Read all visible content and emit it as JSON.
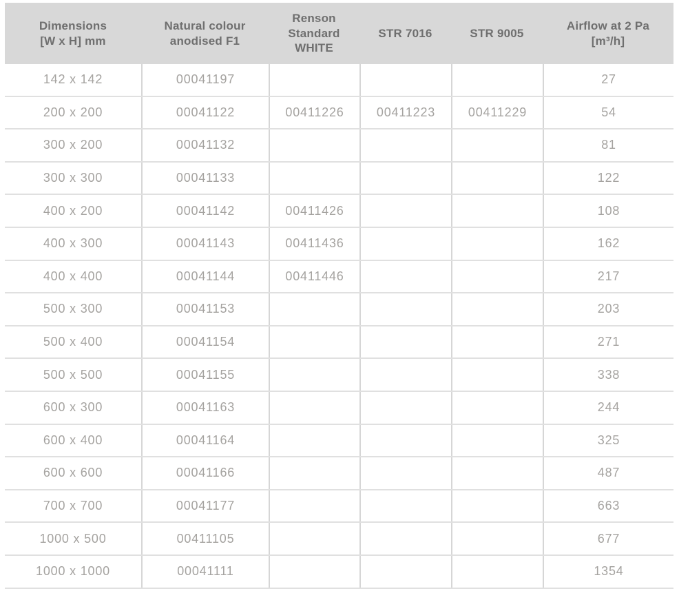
{
  "table": {
    "columns": [
      {
        "key": "dimensions",
        "label": "Dimensions\n[W x H] mm"
      },
      {
        "key": "natural-colour-anodised-f1",
        "label": "Natural colour\nanodised F1"
      },
      {
        "key": "renson-standard-white",
        "label": "Renson\nStandard\nWHITE"
      },
      {
        "key": "str-7016",
        "label": "STR 7016"
      },
      {
        "key": "str-9005",
        "label": "STR 9005"
      },
      {
        "key": "airflow-at-2pa",
        "label": "Airflow at 2 Pa\n[m³/h]"
      }
    ],
    "rows": [
      [
        "142 x 142",
        "00041197",
        "",
        "",
        "",
        "27"
      ],
      [
        "200 x 200",
        "00041122",
        "00411226",
        "00411223",
        "00411229",
        "54"
      ],
      [
        "300 x 200",
        "00041132",
        "",
        "",
        "",
        "81"
      ],
      [
        "300 x 300",
        "00041133",
        "",
        "",
        "",
        "122"
      ],
      [
        "400 x 200",
        "00041142",
        "00411426",
        "",
        "",
        "108"
      ],
      [
        "400 x 300",
        "00041143",
        "00411436",
        "",
        "",
        "162"
      ],
      [
        "400 x 400",
        "00041144",
        "00411446",
        "",
        "",
        "217"
      ],
      [
        "500 x 300",
        "00041153",
        "",
        "",
        "",
        "203"
      ],
      [
        "500 x 400",
        "00041154",
        "",
        "",
        "",
        "271"
      ],
      [
        "500 x 500",
        "00041155",
        "",
        "",
        "",
        "338"
      ],
      [
        "600 x 300",
        "00041163",
        "",
        "",
        "",
        "244"
      ],
      [
        "600 x 400",
        "00041164",
        "",
        "",
        "",
        "325"
      ],
      [
        "600 x 600",
        "00041166",
        "",
        "",
        "",
        "487"
      ],
      [
        "700 x 700",
        "00041177",
        "",
        "",
        "",
        "663"
      ],
      [
        "1000 x 500",
        "00411105",
        "",
        "",
        "",
        "677"
      ],
      [
        "1000 x 1000",
        "00041111",
        "",
        "",
        "",
        "1354"
      ]
    ]
  },
  "colors": {
    "header_background": "#d8d8d8",
    "header_text": "#6f6f6f",
    "body_text": "#a5a3a0",
    "row_divider": "#e0e0e0",
    "column_divider": "#d6d6d6"
  }
}
